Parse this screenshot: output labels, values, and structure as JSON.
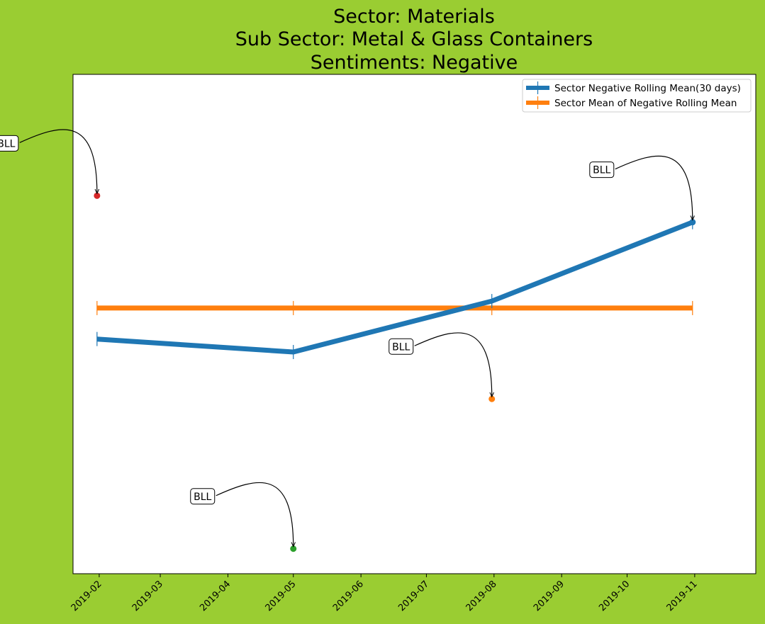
{
  "title_lines": [
    "Sector:  Materials",
    "Sub Sector:  Metal & Glass Containers",
    "Sentiments:  Negative"
  ],
  "chart_data": {
    "type": "line",
    "title": "Sector:  Materials\nSub Sector:  Metal & Glass Containers\nSentiments:  Negative",
    "xlabel": "",
    "ylabel": "",
    "x_axis": {
      "kind": "date",
      "range": [
        "2019-01-20",
        "2019-11-29"
      ],
      "ticks": [
        "2019-02-01",
        "2019-03-01",
        "2019-04-01",
        "2019-05-01",
        "2019-06-01",
        "2019-07-01",
        "2019-08-01",
        "2019-09-01",
        "2019-10-01",
        "2019-11-01"
      ],
      "tick_labels": [
        "2019-02",
        "2019-03",
        "2019-04",
        "2019-05",
        "2019-06",
        "2019-07",
        "2019-08",
        "2019-09",
        "2019-10",
        "2019-11"
      ]
    },
    "y_axis": {
      "ylim": [
        0.0,
        1.0
      ],
      "tick_labels_shown": false,
      "note": "relative values; axis is unlabeled"
    },
    "grid": false,
    "legend_position": "upper right",
    "series": [
      {
        "name": "Sector Negative Rolling Mean(30 days)",
        "color": "#1f77b4",
        "x": [
          "2019-01-31",
          "2019-05-01",
          "2019-07-31",
          "2019-10-31"
        ],
        "y": [
          0.47,
          0.444,
          0.546,
          0.704
        ]
      },
      {
        "name": "Sector Mean of Negative Rolling Mean",
        "color": "#ff7f0e",
        "x": [
          "2019-01-31",
          "2019-05-01",
          "2019-07-31",
          "2019-10-31"
        ],
        "y": [
          0.532,
          0.532,
          0.532,
          0.532
        ]
      }
    ],
    "points": [
      {
        "x": "2019-01-31",
        "y": 0.757,
        "color": "#d62728",
        "label": "BLL"
      },
      {
        "x": "2019-05-01",
        "y": 0.05,
        "color": "#2ca02c",
        "label": "BLL"
      },
      {
        "x": "2019-07-31",
        "y": 0.35,
        "color": "#ff7f0e",
        "label": "BLL"
      },
      {
        "x": "2019-10-31",
        "y": 0.704,
        "color": "#1f77b4",
        "label": "BLL"
      }
    ]
  }
}
